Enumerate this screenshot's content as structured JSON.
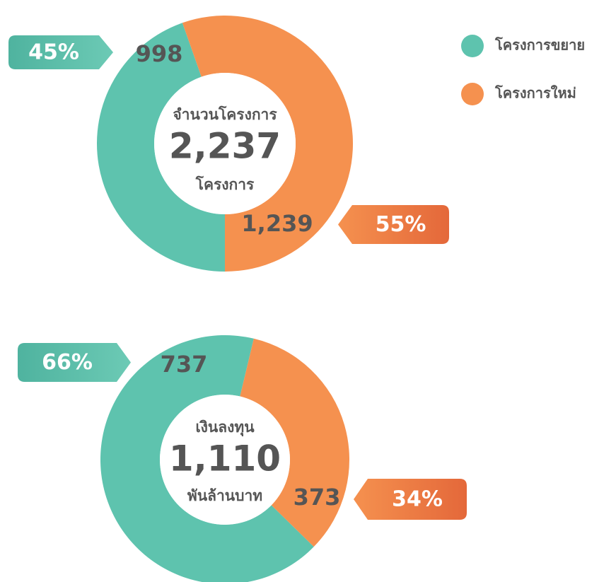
{
  "legend": {
    "labels": [
      "โครงการขยาย",
      "โครงการใหม่"
    ],
    "colors": [
      "#5ec3ae",
      "#f5914f"
    ]
  },
  "chart_data": [
    {
      "type": "donut",
      "values": [
        998,
        1239
      ],
      "value_labels": [
        "998",
        "1,239"
      ],
      "percents": [
        45,
        55
      ],
      "percent_labels": [
        "45%",
        "55%"
      ],
      "center_title": "จำนวนโครงการ",
      "total": 2237,
      "total_label": "2,237",
      "center_unit": "โครงการ"
    },
    {
      "type": "donut",
      "values": [
        737,
        373
      ],
      "value_labels": [
        "737",
        "373"
      ],
      "percents": [
        66,
        34
      ],
      "percent_labels": [
        "66%",
        "34%"
      ],
      "center_title": "เงินลงทุน",
      "total": 1110,
      "total_label": "1,110",
      "center_unit": "พันล้านบาท"
    }
  ]
}
